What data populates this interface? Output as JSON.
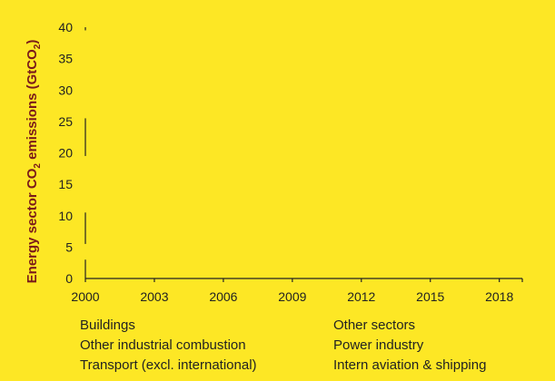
{
  "chart_data": {
    "type": "area",
    "title": "",
    "ylabel": "Energy sector CO₂ emissions (GtCO₂)",
    "ylabel_parts": [
      "Energy sector CO",
      "2",
      " emissions (GtCO",
      "2",
      ")"
    ],
    "ylim": [
      0,
      40
    ],
    "yticks": [
      "0",
      "5",
      "10",
      "15",
      "20",
      "25",
      "30",
      "35",
      "40"
    ],
    "xlim": [
      2000,
      2019
    ],
    "xticks": [
      "2000",
      "2003",
      "2006",
      "2009",
      "2012",
      "2015",
      "2018"
    ],
    "legend_position": "bottom",
    "legend": [
      "Buildings",
      "Other sectors",
      "Other industrial combustion",
      "Power industry",
      "Transport (excl. international)",
      "Intern aviation & shipping"
    ],
    "axis_color": "#222222",
    "ylabel_color": "#7A1A1A",
    "background": "#FDE725"
  }
}
